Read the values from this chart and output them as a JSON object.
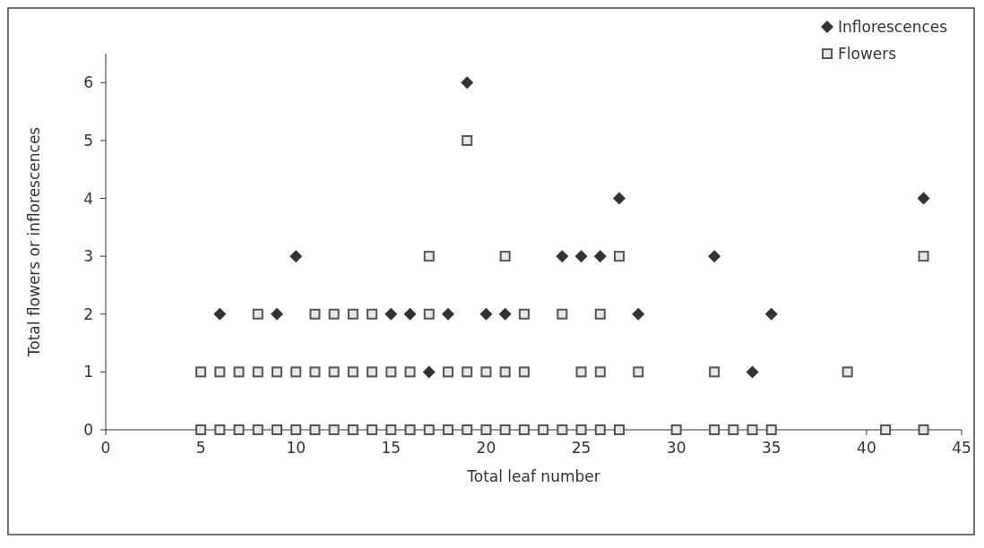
{
  "chart_data": {
    "type": "scatter",
    "xlabel": "Total leaf number",
    "ylabel": "Total flowers or inflorescences",
    "xlim": [
      0,
      45
    ],
    "xticks": [
      0,
      5,
      10,
      15,
      20,
      25,
      30,
      35,
      40,
      45
    ],
    "ylim": [
      0,
      6.5
    ],
    "yticks": [
      0,
      1,
      2,
      3,
      4,
      5,
      6
    ],
    "legend": "top right",
    "grid": false,
    "series": [
      {
        "name": "Inflorescences",
        "color": "#333333",
        "marker": "diamond",
        "x": [
          17,
          34,
          6,
          9,
          15,
          16,
          18,
          20,
          21,
          28,
          35,
          10,
          24,
          25,
          26,
          32,
          27,
          43,
          19
        ],
        "values": [
          1,
          1,
          2,
          2,
          2,
          2,
          2,
          2,
          2,
          2,
          2,
          3,
          3,
          3,
          3,
          3,
          4,
          4,
          6
        ]
      },
      {
        "name": "Flowers",
        "color": "#555555",
        "marker": "square",
        "x": [
          5,
          6,
          7,
          8,
          9,
          10,
          11,
          12,
          13,
          14,
          15,
          16,
          17,
          18,
          19,
          20,
          21,
          22,
          23,
          24,
          25,
          26,
          27,
          30,
          32,
          33,
          34,
          35,
          41,
          43,
          5,
          6,
          7,
          8,
          9,
          10,
          11,
          12,
          13,
          14,
          15,
          16,
          18,
          19,
          20,
          21,
          22,
          25,
          26,
          28,
          32,
          39,
          8,
          11,
          12,
          13,
          14,
          17,
          22,
          24,
          26,
          17,
          21,
          27,
          43,
          19
        ],
        "values": [
          0,
          0,
          0,
          0,
          0,
          0,
          0,
          0,
          0,
          0,
          0,
          0,
          0,
          0,
          0,
          0,
          0,
          0,
          0,
          0,
          0,
          0,
          0,
          0,
          0,
          0,
          0,
          0,
          0,
          0,
          1,
          1,
          1,
          1,
          1,
          1,
          1,
          1,
          1,
          1,
          1,
          1,
          1,
          1,
          1,
          1,
          1,
          1,
          1,
          1,
          1,
          1,
          2,
          2,
          2,
          2,
          2,
          2,
          2,
          2,
          2,
          3,
          3,
          3,
          3,
          5
        ]
      }
    ]
  }
}
